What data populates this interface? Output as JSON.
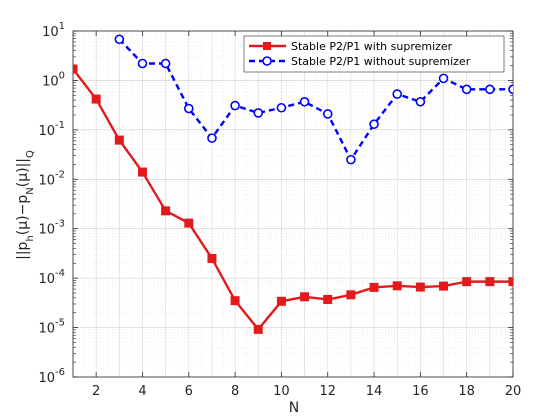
{
  "chart_data": {
    "type": "line",
    "xlabel": "N",
    "ylabel_main": "||p",
    "ylabel_sub1": "h",
    "ylabel_mid1": "(μ)−p",
    "ylabel_sub2": "N",
    "ylabel_mid2": "(μ)||",
    "ylabel_sub3": "Q",
    "ylabel": "||p_h(μ)−p_N(μ)||_Q",
    "xlim": [
      1,
      20
    ],
    "ylim": [
      1e-06,
      10
    ],
    "yscale": "log",
    "grid": true,
    "minor_grid": true,
    "legend_position": "top-right",
    "xticks": [
      "2",
      "4",
      "6",
      "8",
      "10",
      "12",
      "14",
      "16",
      "18",
      "20"
    ],
    "yticks": [
      {
        "base": "10",
        "exp": "-6"
      },
      {
        "base": "10",
        "exp": "-5"
      },
      {
        "base": "10",
        "exp": "-4"
      },
      {
        "base": "10",
        "exp": "-3"
      },
      {
        "base": "10",
        "exp": "-2"
      },
      {
        "base": "10",
        "exp": "-1"
      },
      {
        "base": "10",
        "exp": "0"
      },
      {
        "base": "10",
        "exp": "1"
      }
    ],
    "series": [
      {
        "name": "Stable P2/P1 with supremizer",
        "color": "#e31a1c",
        "line_style": "solid",
        "marker": "filled-square",
        "x": [
          1,
          2,
          3,
          4,
          5,
          6,
          7,
          8,
          9,
          10,
          11,
          12,
          13,
          14,
          15,
          16,
          17,
          18,
          19,
          20
        ],
        "values": [
          1.7,
          0.42,
          0.062,
          0.014,
          0.0023,
          0.0013,
          0.00025,
          3.5e-05,
          9.2e-06,
          3.4e-05,
          4.2e-05,
          3.7e-05,
          4.6e-05,
          6.5e-05,
          7e-05,
          6.6e-05,
          6.9e-05,
          8.5e-05,
          8.5e-05,
          8.5e-05
        ]
      },
      {
        "name": "Stable P2/P1 without supremizer",
        "color": "#0000ff",
        "line_style": "dashed",
        "marker": "open-circle",
        "x": [
          3,
          4,
          5,
          6,
          7,
          8,
          9,
          10,
          11,
          12,
          13,
          14,
          15,
          16,
          17,
          18,
          19,
          20
        ],
        "values": [
          6.8,
          2.2,
          2.2,
          0.27,
          0.068,
          0.31,
          0.22,
          0.28,
          0.37,
          0.21,
          0.025,
          0.13,
          0.53,
          0.37,
          1.1,
          0.66,
          0.66,
          0.66
        ]
      }
    ]
  }
}
